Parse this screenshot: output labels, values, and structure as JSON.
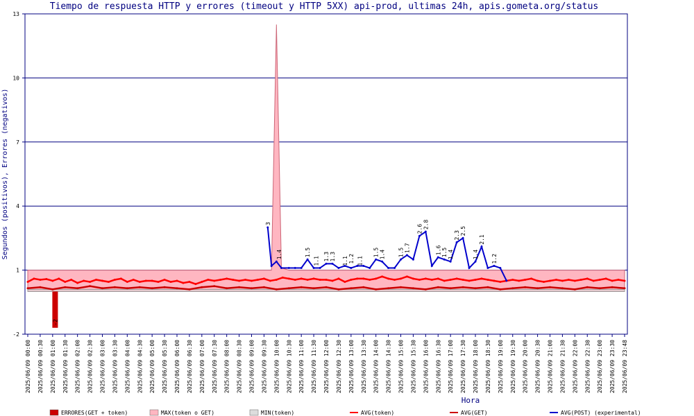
{
  "chart_data": {
    "type": "line",
    "title": "Tiempo de respuesta HTTP y errores (timeout y HTTP 5XX) api-prod, ultimas 24h, apis.gometa.org/status",
    "xlabel": "Hora",
    "ylabel": "Segundos (positivos), Errores (negativos)",
    "ylim": [
      -2,
      13
    ],
    "yticks": [
      -2,
      1,
      4,
      7,
      10,
      13
    ],
    "grid": true,
    "legend_position": "bottom",
    "x_tick_labels": [
      "2025/06/09 00:00",
      "2025/06/09 00:30",
      "2025/06/09 01:00",
      "2025/06/09 01:30",
      "2025/06/09 02:00",
      "2025/06/09 02:30",
      "2025/06/09 03:00",
      "2025/06/09 03:30",
      "2025/06/09 04:00",
      "2025/06/09 04:30",
      "2025/06/09 05:00",
      "2025/06/09 05:30",
      "2025/06/09 06:00",
      "2025/06/09 06:30",
      "2025/06/09 07:00",
      "2025/06/09 07:30",
      "2025/06/09 08:00",
      "2025/06/09 08:30",
      "2025/06/09 09:00",
      "2025/06/09 09:30",
      "2025/06/09 10:00",
      "2025/06/09 10:30",
      "2025/06/09 11:00",
      "2025/06/09 11:30",
      "2025/06/09 12:00",
      "2025/06/09 12:30",
      "2025/06/09 13:00",
      "2025/06/09 13:30",
      "2025/06/09 14:00",
      "2025/06/09 14:30",
      "2025/06/09 15:00",
      "2025/06/09 15:30",
      "2025/06/09 16:00",
      "2025/06/09 16:30",
      "2025/06/09 17:00",
      "2025/06/09 17:30",
      "2025/06/09 18:00",
      "2025/06/09 18:30",
      "2025/06/09 19:00",
      "2025/06/09 19:30",
      "2025/06/09 20:00",
      "2025/06/09 20:30",
      "2025/06/09 21:00",
      "2025/06/09 21:30",
      "2025/06/09 22:00",
      "2025/06/09 22:30",
      "2025/06/09 23:00",
      "2025/06/09 23:30",
      "2025/06/09 23:48"
    ],
    "series": [
      {
        "name": "ERRORES(GET + token)",
        "kind": "bar",
        "color": "#cc0000",
        "points": [
          [
            2.2,
            -1.7
          ]
        ]
      },
      {
        "name": "MAX(token o GET)",
        "kind": "area",
        "color": "#ffb6c1",
        "points": [
          [
            0,
            1
          ],
          [
            1,
            1
          ],
          [
            2,
            1
          ],
          [
            3,
            1
          ],
          [
            4,
            1
          ],
          [
            5,
            1
          ],
          [
            6,
            1
          ],
          [
            7,
            1
          ],
          [
            8,
            1
          ],
          [
            9,
            1
          ],
          [
            10,
            1
          ],
          [
            11,
            1
          ],
          [
            12,
            1
          ],
          [
            13,
            1
          ],
          [
            14,
            1
          ],
          [
            15,
            1
          ],
          [
            16,
            1
          ],
          [
            17,
            1
          ],
          [
            18,
            1
          ],
          [
            19,
            1
          ],
          [
            19.6,
            1
          ],
          [
            20,
            12.5
          ],
          [
            20.4,
            1.1
          ],
          [
            21,
            1
          ],
          [
            22,
            1
          ],
          [
            23,
            1
          ],
          [
            24,
            1
          ],
          [
            25,
            1
          ],
          [
            26,
            1
          ],
          [
            27,
            1
          ],
          [
            28,
            1
          ],
          [
            29,
            1
          ],
          [
            30,
            1
          ],
          [
            31,
            1
          ],
          [
            32,
            1
          ],
          [
            33,
            1
          ],
          [
            34,
            1
          ],
          [
            35,
            1
          ],
          [
            36,
            1
          ],
          [
            37,
            1
          ],
          [
            38,
            1
          ],
          [
            39,
            1
          ],
          [
            40,
            1
          ],
          [
            41,
            1
          ],
          [
            42,
            1
          ],
          [
            43,
            1
          ],
          [
            44,
            1
          ],
          [
            45,
            1
          ],
          [
            46,
            1
          ],
          [
            47,
            1
          ],
          [
            48,
            1
          ]
        ]
      },
      {
        "name": "MIN(token)",
        "kind": "area",
        "color": "#dddddd",
        "points": [
          [
            0,
            0.1
          ],
          [
            48,
            0.1
          ]
        ]
      },
      {
        "name": "AVG(token)",
        "kind": "line",
        "color": "#ff0000",
        "points": [
          [
            0,
            0.45
          ],
          [
            0.5,
            0.6
          ],
          [
            1,
            0.55
          ],
          [
            1.5,
            0.58
          ],
          [
            2,
            0.5
          ],
          [
            2.5,
            0.6
          ],
          [
            3,
            0.45
          ],
          [
            3.5,
            0.55
          ],
          [
            4,
            0.4
          ],
          [
            4.5,
            0.5
          ],
          [
            5,
            0.45
          ],
          [
            5.5,
            0.55
          ],
          [
            6,
            0.5
          ],
          [
            6.5,
            0.45
          ],
          [
            7,
            0.55
          ],
          [
            7.5,
            0.6
          ],
          [
            8,
            0.45
          ],
          [
            8.5,
            0.55
          ],
          [
            9,
            0.45
          ],
          [
            9.5,
            0.5
          ],
          [
            10,
            0.5
          ],
          [
            10.5,
            0.45
          ],
          [
            11,
            0.55
          ],
          [
            11.5,
            0.45
          ],
          [
            12,
            0.5
          ],
          [
            12.5,
            0.4
          ],
          [
            13,
            0.45
          ],
          [
            13.5,
            0.35
          ],
          [
            14,
            0.45
          ],
          [
            14.5,
            0.55
          ],
          [
            15,
            0.5
          ],
          [
            15.5,
            0.55
          ],
          [
            16,
            0.6
          ],
          [
            16.5,
            0.55
          ],
          [
            17,
            0.5
          ],
          [
            17.5,
            0.55
          ],
          [
            18,
            0.5
          ],
          [
            18.5,
            0.55
          ],
          [
            19,
            0.6
          ],
          [
            19.5,
            0.5
          ],
          [
            20,
            0.55
          ],
          [
            20.5,
            0.65
          ],
          [
            21,
            0.6
          ],
          [
            21.5,
            0.55
          ],
          [
            22,
            0.6
          ],
          [
            22.5,
            0.55
          ],
          [
            23,
            0.6
          ],
          [
            23.5,
            0.55
          ],
          [
            24,
            0.55
          ],
          [
            24.5,
            0.5
          ],
          [
            25,
            0.6
          ],
          [
            25.5,
            0.45
          ],
          [
            26,
            0.55
          ],
          [
            26.5,
            0.6
          ],
          [
            27,
            0.6
          ],
          [
            27.5,
            0.55
          ],
          [
            28,
            0.6
          ],
          [
            28.5,
            0.7
          ],
          [
            29,
            0.6
          ],
          [
            29.5,
            0.55
          ],
          [
            30,
            0.6
          ],
          [
            30.5,
            0.7
          ],
          [
            31,
            0.6
          ],
          [
            31.5,
            0.55
          ],
          [
            32,
            0.6
          ],
          [
            32.5,
            0.55
          ],
          [
            33,
            0.6
          ],
          [
            33.5,
            0.5
          ],
          [
            34,
            0.55
          ],
          [
            34.5,
            0.6
          ],
          [
            35,
            0.55
          ],
          [
            35.5,
            0.5
          ],
          [
            36,
            0.55
          ],
          [
            36.5,
            0.6
          ],
          [
            37,
            0.55
          ],
          [
            37.5,
            0.5
          ],
          [
            38,
            0.45
          ],
          [
            38.5,
            0.5
          ],
          [
            39,
            0.55
          ],
          [
            39.5,
            0.5
          ],
          [
            40,
            0.55
          ],
          [
            40.5,
            0.6
          ],
          [
            41,
            0.5
          ],
          [
            41.5,
            0.45
          ],
          [
            42,
            0.5
          ],
          [
            42.5,
            0.55
          ],
          [
            43,
            0.5
          ],
          [
            43.5,
            0.55
          ],
          [
            44,
            0.5
          ],
          [
            44.5,
            0.55
          ],
          [
            45,
            0.6
          ],
          [
            45.5,
            0.5
          ],
          [
            46,
            0.55
          ],
          [
            46.5,
            0.6
          ],
          [
            47,
            0.5
          ],
          [
            47.5,
            0.55
          ],
          [
            48,
            0.5
          ]
        ]
      },
      {
        "name": "AVG(GET)",
        "kind": "line",
        "color": "#cc0000",
        "points": [
          [
            0,
            0.15
          ],
          [
            1,
            0.2
          ],
          [
            2,
            0.1
          ],
          [
            3,
            0.2
          ],
          [
            4,
            0.15
          ],
          [
            5,
            0.25
          ],
          [
            6,
            0.15
          ],
          [
            7,
            0.2
          ],
          [
            8,
            0.15
          ],
          [
            9,
            0.2
          ],
          [
            10,
            0.15
          ],
          [
            11,
            0.2
          ],
          [
            12,
            0.15
          ],
          [
            13,
            0.1
          ],
          [
            14,
            0.2
          ],
          [
            15,
            0.25
          ],
          [
            16,
            0.15
          ],
          [
            17,
            0.2
          ],
          [
            18,
            0.15
          ],
          [
            19,
            0.2
          ],
          [
            20,
            0.1
          ],
          [
            21,
            0.15
          ],
          [
            22,
            0.2
          ],
          [
            23,
            0.15
          ],
          [
            24,
            0.2
          ],
          [
            25,
            0.1
          ],
          [
            26,
            0.15
          ],
          [
            27,
            0.2
          ],
          [
            28,
            0.1
          ],
          [
            29,
            0.15
          ],
          [
            30,
            0.2
          ],
          [
            31,
            0.15
          ],
          [
            32,
            0.1
          ],
          [
            33,
            0.2
          ],
          [
            34,
            0.15
          ],
          [
            35,
            0.2
          ],
          [
            36,
            0.15
          ],
          [
            37,
            0.2
          ],
          [
            38,
            0.1
          ],
          [
            39,
            0.15
          ],
          [
            40,
            0.2
          ],
          [
            41,
            0.15
          ],
          [
            42,
            0.2
          ],
          [
            43,
            0.15
          ],
          [
            44,
            0.1
          ],
          [
            45,
            0.2
          ],
          [
            46,
            0.15
          ],
          [
            47,
            0.2
          ],
          [
            48,
            0.15
          ]
        ]
      },
      {
        "name": "AVG(POST) (experimental)",
        "kind": "line",
        "color": "#0000cc",
        "points": [
          [
            19.3,
            3
          ],
          [
            19.6,
            1.2
          ],
          [
            20,
            1.4
          ],
          [
            20.4,
            1.1
          ],
          [
            21,
            1.1
          ],
          [
            21.5,
            1.1
          ],
          [
            22,
            1.1
          ],
          [
            22.5,
            1.5
          ],
          [
            23,
            1.1
          ],
          [
            23.5,
            1.1
          ],
          [
            24,
            1.3
          ],
          [
            24.5,
            1.3
          ],
          [
            25,
            1.1
          ],
          [
            25.5,
            1.2
          ],
          [
            26,
            1.1
          ],
          [
            26.5,
            1.2
          ],
          [
            27,
            1.2
          ],
          [
            27.5,
            1.1
          ],
          [
            28,
            1.5
          ],
          [
            28.5,
            1.4
          ],
          [
            29,
            1.1
          ],
          [
            29.5,
            1.1
          ],
          [
            30,
            1.5
          ],
          [
            30.5,
            1.7
          ],
          [
            31,
            1.5
          ],
          [
            31.5,
            2.6
          ],
          [
            32,
            2.8
          ],
          [
            32.5,
            1.2
          ],
          [
            33,
            1.6
          ],
          [
            33.5,
            1.5
          ],
          [
            34,
            1.4
          ],
          [
            34.5,
            2.3
          ],
          [
            35,
            2.5
          ],
          [
            35.5,
            1.1
          ],
          [
            36,
            1.4
          ],
          [
            36.5,
            2.1
          ],
          [
            37,
            1.1
          ],
          [
            37.5,
            1.2
          ],
          [
            38,
            1.1
          ],
          [
            38.5,
            0.51
          ]
        ]
      }
    ],
    "data_labels": [
      {
        "x": 19.3,
        "y": 3,
        "text": "3"
      },
      {
        "x": 20.2,
        "y": 1.4,
        "text": "1.4"
      },
      {
        "x": 22.5,
        "y": 1.5,
        "text": "1.5"
      },
      {
        "x": 23.2,
        "y": 1.1,
        "text": "1.1"
      },
      {
        "x": 24,
        "y": 1.3,
        "text": "1.3"
      },
      {
        "x": 24.5,
        "y": 1.3,
        "text": "1.3"
      },
      {
        "x": 25.5,
        "y": 1.1,
        "text": "1.1"
      },
      {
        "x": 26,
        "y": 1.2,
        "text": "1.2"
      },
      {
        "x": 26.7,
        "y": 1.1,
        "text": "1.1"
      },
      {
        "x": 28,
        "y": 1.5,
        "text": "1.5"
      },
      {
        "x": 28.5,
        "y": 1.4,
        "text": "1.4"
      },
      {
        "x": 30,
        "y": 1.5,
        "text": "1.5"
      },
      {
        "x": 30.5,
        "y": 1.7,
        "text": "1.7"
      },
      {
        "x": 31.5,
        "y": 2.6,
        "text": "2.6"
      },
      {
        "x": 32,
        "y": 2.8,
        "text": "2.8"
      },
      {
        "x": 33,
        "y": 1.6,
        "text": "1.6"
      },
      {
        "x": 33.5,
        "y": 1.5,
        "text": "1.5"
      },
      {
        "x": 34,
        "y": 1.4,
        "text": "1.4"
      },
      {
        "x": 34.5,
        "y": 2.3,
        "text": "2.3"
      },
      {
        "x": 35,
        "y": 2.5,
        "text": "2.5"
      },
      {
        "x": 36,
        "y": 1.4,
        "text": "1.4"
      },
      {
        "x": 36.5,
        "y": 2.1,
        "text": "2.1"
      },
      {
        "x": 37.5,
        "y": 1.2,
        "text": "1.2"
      },
      {
        "x": 2.2,
        "y": -1.7,
        "text": "-2"
      }
    ]
  }
}
